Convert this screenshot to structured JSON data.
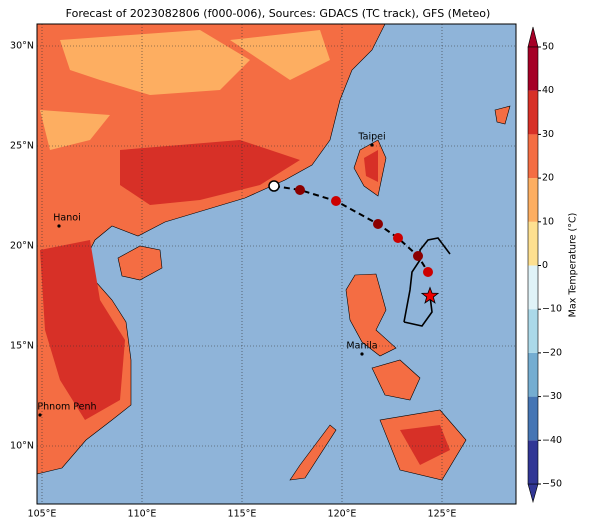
{
  "chart_data": {
    "type": "map",
    "title": "Forecast of 2023082806 (f000-006), Sources: GDACS (TC track), GFS (Meteo)",
    "xlim": [
      104.75,
      128.7
    ],
    "ylim": [
      7.1,
      31.1
    ],
    "xticks": [
      {
        "value": 105,
        "label": "105°E"
      },
      {
        "value": 110,
        "label": "110°E"
      },
      {
        "value": 115,
        "label": "115°E"
      },
      {
        "value": 120,
        "label": "120°E"
      },
      {
        "value": 125,
        "label": "125°E"
      }
    ],
    "yticks": [
      {
        "value": 10,
        "label": "10°N"
      },
      {
        "value": 15,
        "label": "15°N"
      },
      {
        "value": 20,
        "label": "20°N"
      },
      {
        "value": 25,
        "label": "25°N"
      },
      {
        "value": 30,
        "label": "30°N"
      }
    ],
    "grid": true,
    "cities": [
      {
        "name": "Hanoi",
        "lon": 105.85,
        "lat": 21.0
      },
      {
        "name": "Taipei",
        "lon": 121.5,
        "lat": 25.05
      },
      {
        "name": "Manila",
        "lon": 121.0,
        "lat": 14.6
      },
      {
        "name": "Phnom Penh",
        "lon": 104.9,
        "lat": 11.55
      }
    ],
    "track": {
      "lon": [
        116.6,
        117.9,
        119.7,
        121.8,
        122.8,
        123.8,
        124.3
      ],
      "lat": [
        23.0,
        22.8,
        22.25,
        21.1,
        20.4,
        19.5,
        18.7
      ]
    },
    "current_position": {
      "lon": 124.4,
      "lat": 17.5
    },
    "colorbar": {
      "label": "Max Temperature (°C)",
      "lim": [
        -50,
        50
      ],
      "ticks": [
        {
          "value": -50,
          "label": "−50"
        },
        {
          "value": -40,
          "label": "−40"
        },
        {
          "value": -30,
          "label": "−30"
        },
        {
          "value": -20,
          "label": "−20"
        },
        {
          "value": -10,
          "label": "−10"
        },
        0,
        10,
        20,
        30,
        40,
        50
      ],
      "colors": [
        "#313695",
        "#4575b4",
        "#74add1",
        "#abd9e9",
        "#e0f3f8",
        "#ffffbf",
        "#fee090",
        "#fdae61",
        "#f46d43",
        "#d73027",
        "#a50026"
      ]
    }
  }
}
